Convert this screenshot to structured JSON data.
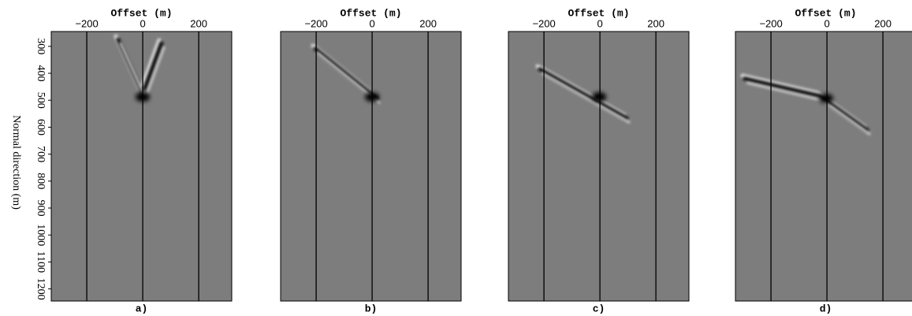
{
  "chart_data": [
    {
      "type": "image",
      "xlabel": "Offset (m)",
      "ylabel": "Normal direction (m)",
      "panel_label": "a)",
      "xlim": [
        -327,
        318
      ],
      "xticks": [
        {
          "value": -200,
          "label": "−200"
        },
        0,
        200
      ],
      "ylim": [
        245,
        1245
      ],
      "y_inverted": true,
      "yticks": [
        300,
        400,
        500,
        600,
        700,
        800,
        900,
        1000,
        1100,
        1200
      ],
      "grid": true
    },
    {
      "type": "image",
      "xlabel": "Offset (m)",
      "panel_label": "b)",
      "xlim": [
        -327,
        318
      ],
      "xticks": [
        {
          "value": -200,
          "label": "−200"
        },
        0,
        200
      ],
      "grid": true
    },
    {
      "type": "image",
      "xlabel": "Offset (m)",
      "panel_label": "c)",
      "xlim": [
        -327,
        318
      ],
      "xticks": [
        {
          "value": -200,
          "label": "−200"
        },
        0,
        200
      ],
      "grid": true
    },
    {
      "type": "image",
      "xlabel": "Offset (m)",
      "panel_label": "d)",
      "xlim": [
        -327,
        318
      ],
      "xticks": [
        {
          "value": -200,
          "label": "−200"
        },
        0,
        200
      ],
      "grid": true
    }
  ]
}
